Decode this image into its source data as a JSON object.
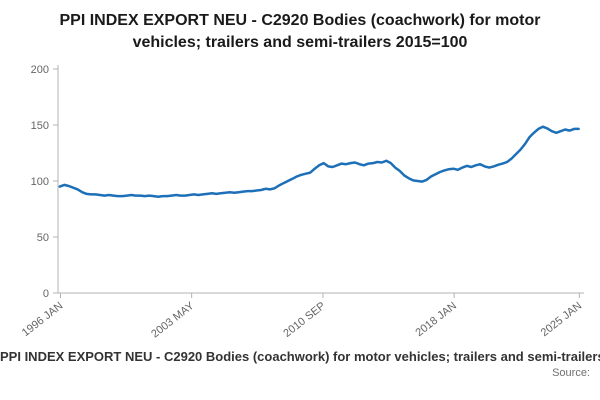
{
  "header": {
    "title": "PPI INDEX EXPORT NEU - C2920 Bodies (coachwork) for motor vehicles; trailers and semi-trailers 2015=100"
  },
  "footer": {
    "legend": "PPI INDEX EXPORT NEU - C2920 Bodies (coachwork) for motor vehicles; trailers and semi-trailers",
    "source_label": "Source:"
  },
  "chart_data": {
    "type": "line",
    "title": "PPI INDEX EXPORT NEU - C2920 Bodies (coachwork) for motor vehicles; trailers and semi-trailers 2015=100",
    "xlabel": "",
    "ylabel": "",
    "grid": false,
    "legend_position": "bottom",
    "line_color": "#1d70b8",
    "ylim": [
      0,
      200
    ],
    "yticks": [
      0,
      50,
      100,
      150,
      200
    ],
    "xlim": [
      1995.9,
      2025.3
    ],
    "xticks": [
      {
        "label": "1996 JAN",
        "x": 1996.04
      },
      {
        "label": "2003 MAY",
        "x": 2003.37
      },
      {
        "label": "2010 SEP",
        "x": 2010.71
      },
      {
        "label": "2018 JAN",
        "x": 2018.04
      },
      {
        "label": "2025 JAN",
        "x": 2025.04
      }
    ],
    "x_start": 1996.0,
    "x_step": 0.25,
    "values": [
      95,
      96.5,
      95.5,
      94,
      92.5,
      90,
      88.5,
      88,
      88,
      87.5,
      87,
      87.5,
      87,
      86.5,
      86.5,
      87,
      87.5,
      87,
      87,
      86.5,
      87,
      86.5,
      86,
      86.5,
      86.5,
      87,
      87.5,
      87,
      87,
      87.5,
      88,
      87.5,
      88,
      88.5,
      89,
      88.5,
      89,
      89.5,
      90,
      89.5,
      90,
      90.5,
      91,
      91,
      91.5,
      92,
      93,
      92.5,
      93.5,
      96,
      98,
      100,
      102,
      104,
      105.5,
      106.5,
      107.5,
      111,
      114,
      116,
      113,
      112.5,
      114,
      115.5,
      115,
      116,
      116.5,
      115,
      114,
      115.5,
      116,
      117,
      116.5,
      118,
      116,
      112,
      109,
      105,
      102.5,
      100.5,
      100,
      99.5,
      101,
      104,
      106,
      108,
      109.5,
      110.5,
      111,
      110,
      112,
      113.5,
      112.5,
      114,
      115,
      113,
      112,
      113,
      114.5,
      115.5,
      117,
      120,
      124,
      128,
      133,
      139,
      143,
      146.5,
      148.5,
      147,
      144.5,
      143,
      144.5,
      146,
      145,
      146.5,
      146.5
    ]
  }
}
